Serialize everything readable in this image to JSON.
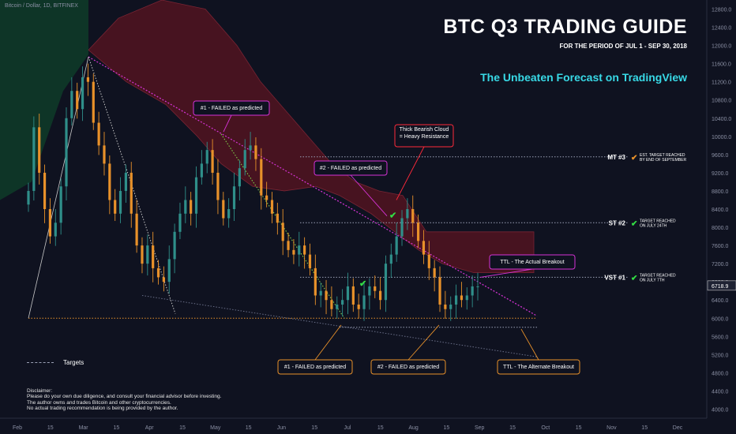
{
  "header": {
    "symbol": "Bitcoin / Dollar, 1D, BITFINEX",
    "title": "BTC Q3 TRADING GUIDE",
    "subtitle": "FOR THE PERIOD OF JUL 1 - SEP 30, 2018",
    "tagline": "The Unbeaten Forecast on TradingView"
  },
  "legend": {
    "label": "Targets"
  },
  "disclaimer": [
    "Disclaimer:",
    "Please do your own due diligence, and consult your financial advisor before investing.",
    "The author owns and trades Bitcoin and other cryptocurrencies.",
    "No actual trading recommendation is being provided by the author."
  ],
  "colors": {
    "background": "#0f1220",
    "cloud": "#5a1420",
    "cloud_edge": "#9c2a3a",
    "green_cloud": "#0e3a28",
    "up_candle": "#2f8f8a",
    "down_candle": "#e8912a",
    "targets": "#e8912a",
    "resistance": "#d633d6",
    "green_line": "#7ed24a",
    "grey_line": "#6a6f88",
    "check": "#33dd44",
    "accent": "#38d9e6"
  },
  "chart_data": {
    "type": "candlestick",
    "x_ticks": [
      "Feb",
      "15",
      "Mar",
      "15",
      "Apr",
      "15",
      "May",
      "15",
      "Jun",
      "15",
      "Jul",
      "15",
      "Aug",
      "15",
      "Sep",
      "15",
      "Oct",
      "15",
      "Nov",
      "15",
      "Dec"
    ],
    "y_ticks": [
      4000,
      4400,
      4800,
      5200,
      5600,
      6000,
      6400,
      6800,
      7200,
      7600,
      8000,
      8400,
      8800,
      9200,
      9600,
      10000,
      10400,
      10800,
      11200,
      11600,
      12000,
      12400,
      12800
    ],
    "ylim": [
      3800,
      13000
    ],
    "last_price": "6718.9",
    "closes": [
      8800,
      10200,
      9200,
      8400,
      7800,
      8100,
      8900,
      10400,
      11000,
      10600,
      11300,
      11200,
      10300,
      9800,
      9400,
      8600,
      8300,
      8800,
      9200,
      8300,
      7600,
      7200,
      7600,
      7100,
      6900,
      6800,
      7300,
      7900,
      8300,
      8600,
      8300,
      9100,
      9400,
      9700,
      9200,
      8600,
      8200,
      8400,
      8900,
      9300,
      9700,
      9800,
      9500,
      8700,
      8600,
      8300,
      8100,
      7700,
      7500,
      7400,
      7600,
      7400,
      7100,
      6500,
      6600,
      6400,
      6200,
      6300,
      6400,
      6700,
      6300,
      6200,
      6500,
      6700,
      6600,
      6400,
      7200,
      7400,
      7800,
      8200,
      8400,
      8100,
      7700,
      7400,
      7100,
      6900,
      6300,
      6200,
      6300,
      6500,
      6400,
      6500,
      6700,
      6700
    ],
    "support_level": 6000,
    "target_levels": [
      {
        "label": "VST #1",
        "value": 6900,
        "note": [
          "TARGET REACHED",
          "ON JULY 7TH"
        ]
      },
      {
        "label": "ST #2",
        "value": 8100,
        "note": [
          "TARGET REACHED",
          "ON JULY 24TH"
        ]
      },
      {
        "label": "MT #3",
        "value": 9550,
        "note": [
          "EST. TARGET REACHED",
          "BY END OF SEPTEMBER"
        ]
      }
    ],
    "annotations": [
      {
        "text": [
          "#1 - FAILED as predicted"
        ],
        "style": "magenta"
      },
      {
        "text": [
          "#2 - FAILED as predicted"
        ],
        "style": "magenta"
      },
      {
        "text": [
          "Thick Bearish Cloud",
          "= Heavy Resistance"
        ],
        "style": "red"
      },
      {
        "text": [
          "TTL - The Actual Breakout"
        ],
        "style": "magenta"
      },
      {
        "text": [
          "#1 - FAILED as predicted"
        ],
        "style": "orange"
      },
      {
        "text": [
          "#2 - FAILED as predicted"
        ],
        "style": "orange"
      },
      {
        "text": [
          "TTL - The Alternate Breakout"
        ],
        "style": "orange"
      }
    ]
  }
}
